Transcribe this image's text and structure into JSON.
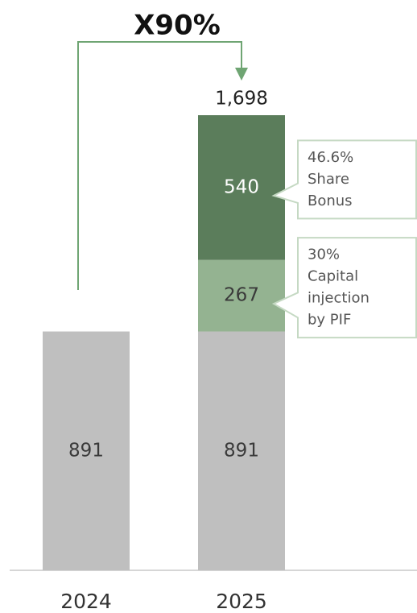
{
  "chart_data": {
    "type": "stacked_bar",
    "annotation": "X90%",
    "categories": [
      "2024",
      "2025"
    ],
    "series": [
      {
        "color": "#bfbfbf",
        "label_color": "#3a3a3a",
        "values": [
          891,
          891
        ]
      },
      {
        "color": "#94b391",
        "label_color": "#3a3a3a",
        "values": [
          null,
          267
        ],
        "callout": [
          "30%",
          "Capital",
          "injection",
          "by PIF"
        ]
      },
      {
        "color": "#5b7d5b",
        "label_color": "#ffffff",
        "values": [
          null,
          540
        ],
        "callout": [
          "46.6%",
          "Share",
          "Bonus"
        ]
      }
    ],
    "totals": [
      null,
      1698
    ],
    "total_labels": [
      null,
      "1,698"
    ]
  }
}
